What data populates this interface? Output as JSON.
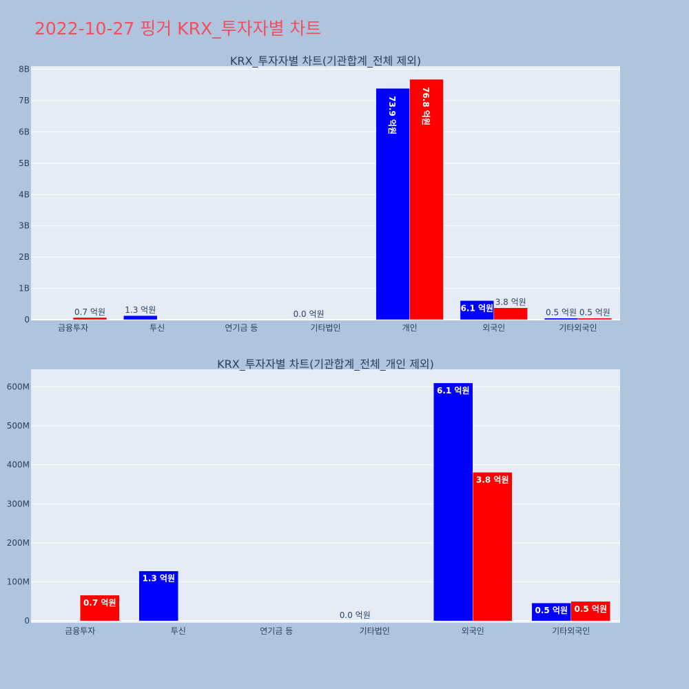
{
  "page_title": "2022-10-27 핑거 KRX_투자자별 차트",
  "colors": {
    "background": "#b0c4de",
    "plot_bg": "#e5ecf6",
    "title": "#ef4f5f",
    "buy": "#0000ff",
    "sell": "#ff0000"
  },
  "chart_data": [
    {
      "type": "bar",
      "title": "KRX_투자자별 차트(기관합계_전체 제외)",
      "categories": [
        "금융투자",
        "투신",
        "연기금 등",
        "기타법인",
        "개인",
        "외국인",
        "기타외국인"
      ],
      "ylim": [
        0,
        8.1
      ],
      "y_unit": "B",
      "y_ticks": [
        0,
        1,
        2,
        3,
        4,
        5,
        6,
        7,
        8
      ],
      "y_tick_labels": [
        "0",
        "1B",
        "2B",
        "3B",
        "4B",
        "5B",
        "6B",
        "7B",
        "8B"
      ],
      "grid": true,
      "series": [
        {
          "color": "#0000ff",
          "values": [
            0,
            0.13,
            0,
            0,
            7.39,
            0.61,
            0.05
          ],
          "labels": [
            "",
            "1.3 억원",
            "",
            "0.0 억원",
            "73.9 억원",
            "6.1 억원",
            "0.5 억원"
          ]
        },
        {
          "color": "#ff0000",
          "values": [
            0.07,
            0,
            0,
            0,
            7.68,
            0.38,
            0.05
          ],
          "labels": [
            "0.7 억원",
            "",
            "",
            "",
            "76.8 억원",
            "3.8 억원",
            "0.5 억원"
          ]
        }
      ]
    },
    {
      "type": "bar",
      "title": "KRX_투자자별 차트(기관합계_전체_개인 제외)",
      "categories": [
        "금융투자",
        "투신",
        "연기금 등",
        "기타법인",
        "외국인",
        "기타외국인"
      ],
      "ylim": [
        -5,
        645
      ],
      "y_unit": "M",
      "y_ticks": [
        0,
        100,
        200,
        300,
        400,
        500,
        600
      ],
      "y_tick_labels": [
        "0",
        "100M",
        "200M",
        "300M",
        "400M",
        "500M",
        "600M"
      ],
      "grid": true,
      "series": [
        {
          "color": "#0000ff",
          "values": [
            0,
            128,
            0,
            0,
            610,
            46
          ],
          "labels": [
            "",
            "1.3 억원",
            "",
            "0.0 억원",
            "6.1 억원",
            "0.5 억원"
          ]
        },
        {
          "color": "#ff0000",
          "values": [
            66,
            0,
            0,
            0,
            381,
            50
          ],
          "labels": [
            "0.7 억원",
            "",
            "",
            "",
            "3.8 억원",
            "0.5 억원"
          ]
        }
      ]
    }
  ]
}
